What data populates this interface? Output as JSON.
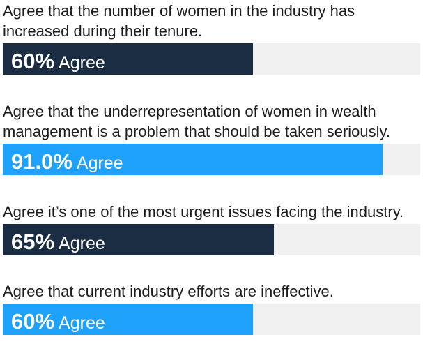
{
  "colors": {
    "navy": "#1a2d42",
    "blue": "#1ea1fb",
    "track": "#f0f0f0"
  },
  "chart_data": {
    "type": "bar",
    "orientation": "horizontal",
    "categories": [
      "Agree that the number of women in the industry has increased during their tenure.",
      "Agree that the underrepresentation of women in wealth management is a problem that should be taken seriously.",
      "Agree it’s one of the most urgent issues facing the industry.",
      "Agree that current industry efforts are ineffective."
    ],
    "values": [
      60,
      91.0,
      65,
      60
    ],
    "unit": "%",
    "xlim": [
      0,
      100
    ],
    "grid": false
  },
  "stats": [
    {
      "question_lines": [
        "Agree that the number of women in the industry has",
        "increased during their tenure."
      ],
      "value_label": "60%",
      "suffix": "Agree",
      "value": 60,
      "color": "#1a2d42"
    },
    {
      "question_lines": [
        "Agree that the underrepresentation of women in wealth",
        "management is a problem that should be taken seriously."
      ],
      "value_label": "91.0%",
      "suffix": "Agree",
      "value": 91.0,
      "color": "#1ea1fb"
    },
    {
      "question_lines": [
        "Agree it’s one of the most urgent issues facing the industry."
      ],
      "value_label": "65%",
      "suffix": "Agree",
      "value": 65,
      "color": "#1a2d42"
    },
    {
      "question_lines": [
        "Agree that current industry efforts are ineffective."
      ],
      "value_label": "60%",
      "suffix": "Agree",
      "value": 60,
      "color": "#1ea1fb"
    }
  ]
}
